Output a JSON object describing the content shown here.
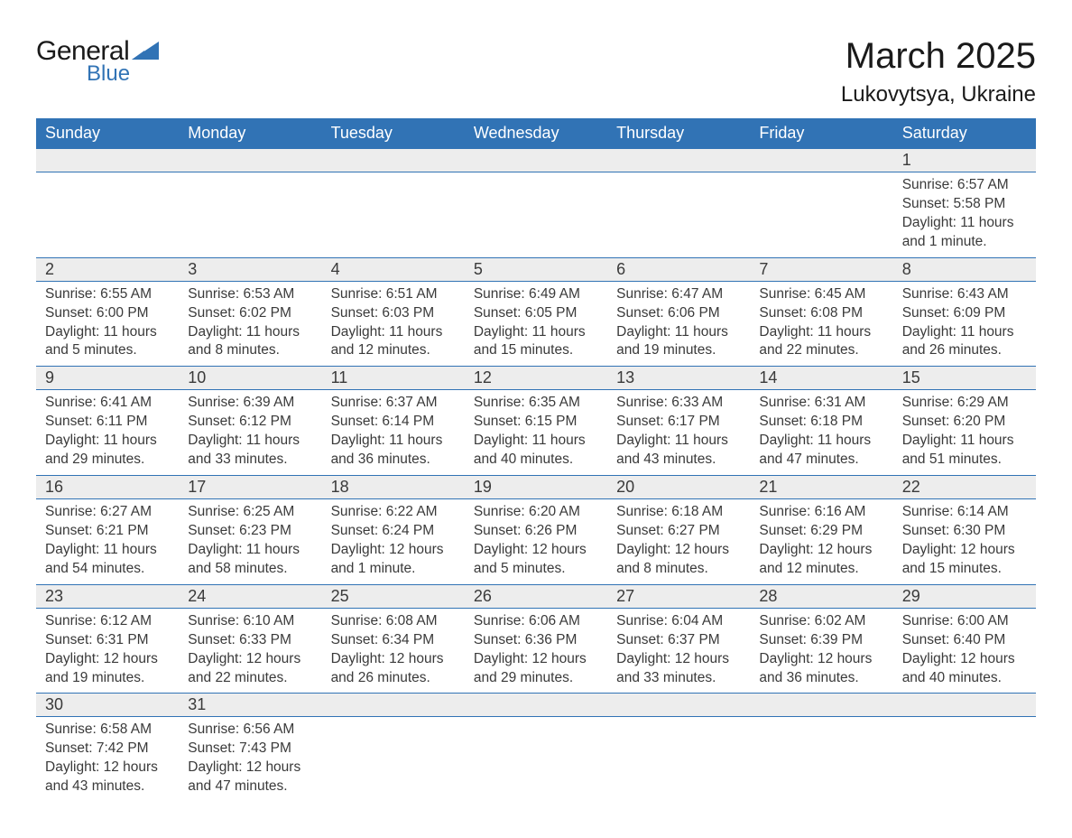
{
  "logo": {
    "word1": "General",
    "word2": "Blue",
    "tri_color": "#3173b5"
  },
  "title": "March 2025",
  "location": "Lukovytsya, Ukraine",
  "colors": {
    "header_bg": "#3173b5",
    "header_text": "#ffffff",
    "daynum_bg": "#ededed",
    "text": "#3a3a3a",
    "row_border": "#3173b5",
    "page_bg": "#ffffff"
  },
  "fonts": {
    "title_size_pt": 30,
    "location_size_pt": 18,
    "header_size_pt": 14,
    "body_size_pt": 11.5
  },
  "day_headers": [
    "Sunday",
    "Monday",
    "Tuesday",
    "Wednesday",
    "Thursday",
    "Friday",
    "Saturday"
  ],
  "weeks": [
    [
      null,
      null,
      null,
      null,
      null,
      null,
      {
        "n": "1",
        "sunrise": "6:57 AM",
        "sunset": "5:58 PM",
        "daylight": "11 hours and 1 minute."
      }
    ],
    [
      {
        "n": "2",
        "sunrise": "6:55 AM",
        "sunset": "6:00 PM",
        "daylight": "11 hours and 5 minutes."
      },
      {
        "n": "3",
        "sunrise": "6:53 AM",
        "sunset": "6:02 PM",
        "daylight": "11 hours and 8 minutes."
      },
      {
        "n": "4",
        "sunrise": "6:51 AM",
        "sunset": "6:03 PM",
        "daylight": "11 hours and 12 minutes."
      },
      {
        "n": "5",
        "sunrise": "6:49 AM",
        "sunset": "6:05 PM",
        "daylight": "11 hours and 15 minutes."
      },
      {
        "n": "6",
        "sunrise": "6:47 AM",
        "sunset": "6:06 PM",
        "daylight": "11 hours and 19 minutes."
      },
      {
        "n": "7",
        "sunrise": "6:45 AM",
        "sunset": "6:08 PM",
        "daylight": "11 hours and 22 minutes."
      },
      {
        "n": "8",
        "sunrise": "6:43 AM",
        "sunset": "6:09 PM",
        "daylight": "11 hours and 26 minutes."
      }
    ],
    [
      {
        "n": "9",
        "sunrise": "6:41 AM",
        "sunset": "6:11 PM",
        "daylight": "11 hours and 29 minutes."
      },
      {
        "n": "10",
        "sunrise": "6:39 AM",
        "sunset": "6:12 PM",
        "daylight": "11 hours and 33 minutes."
      },
      {
        "n": "11",
        "sunrise": "6:37 AM",
        "sunset": "6:14 PM",
        "daylight": "11 hours and 36 minutes."
      },
      {
        "n": "12",
        "sunrise": "6:35 AM",
        "sunset": "6:15 PM",
        "daylight": "11 hours and 40 minutes."
      },
      {
        "n": "13",
        "sunrise": "6:33 AM",
        "sunset": "6:17 PM",
        "daylight": "11 hours and 43 minutes."
      },
      {
        "n": "14",
        "sunrise": "6:31 AM",
        "sunset": "6:18 PM",
        "daylight": "11 hours and 47 minutes."
      },
      {
        "n": "15",
        "sunrise": "6:29 AM",
        "sunset": "6:20 PM",
        "daylight": "11 hours and 51 minutes."
      }
    ],
    [
      {
        "n": "16",
        "sunrise": "6:27 AM",
        "sunset": "6:21 PM",
        "daylight": "11 hours and 54 minutes."
      },
      {
        "n": "17",
        "sunrise": "6:25 AM",
        "sunset": "6:23 PM",
        "daylight": "11 hours and 58 minutes."
      },
      {
        "n": "18",
        "sunrise": "6:22 AM",
        "sunset": "6:24 PM",
        "daylight": "12 hours and 1 minute."
      },
      {
        "n": "19",
        "sunrise": "6:20 AM",
        "sunset": "6:26 PM",
        "daylight": "12 hours and 5 minutes."
      },
      {
        "n": "20",
        "sunrise": "6:18 AM",
        "sunset": "6:27 PM",
        "daylight": "12 hours and 8 minutes."
      },
      {
        "n": "21",
        "sunrise": "6:16 AM",
        "sunset": "6:29 PM",
        "daylight": "12 hours and 12 minutes."
      },
      {
        "n": "22",
        "sunrise": "6:14 AM",
        "sunset": "6:30 PM",
        "daylight": "12 hours and 15 minutes."
      }
    ],
    [
      {
        "n": "23",
        "sunrise": "6:12 AM",
        "sunset": "6:31 PM",
        "daylight": "12 hours and 19 minutes."
      },
      {
        "n": "24",
        "sunrise": "6:10 AM",
        "sunset": "6:33 PM",
        "daylight": "12 hours and 22 minutes."
      },
      {
        "n": "25",
        "sunrise": "6:08 AM",
        "sunset": "6:34 PM",
        "daylight": "12 hours and 26 minutes."
      },
      {
        "n": "26",
        "sunrise": "6:06 AM",
        "sunset": "6:36 PM",
        "daylight": "12 hours and 29 minutes."
      },
      {
        "n": "27",
        "sunrise": "6:04 AM",
        "sunset": "6:37 PM",
        "daylight": "12 hours and 33 minutes."
      },
      {
        "n": "28",
        "sunrise": "6:02 AM",
        "sunset": "6:39 PM",
        "daylight": "12 hours and 36 minutes."
      },
      {
        "n": "29",
        "sunrise": "6:00 AM",
        "sunset": "6:40 PM",
        "daylight": "12 hours and 40 minutes."
      }
    ],
    [
      {
        "n": "30",
        "sunrise": "6:58 AM",
        "sunset": "7:42 PM",
        "daylight": "12 hours and 43 minutes."
      },
      {
        "n": "31",
        "sunrise": "6:56 AM",
        "sunset": "7:43 PM",
        "daylight": "12 hours and 47 minutes."
      },
      null,
      null,
      null,
      null,
      null
    ]
  ],
  "labels": {
    "sunrise": "Sunrise:",
    "sunset": "Sunset:",
    "daylight": "Daylight:"
  }
}
